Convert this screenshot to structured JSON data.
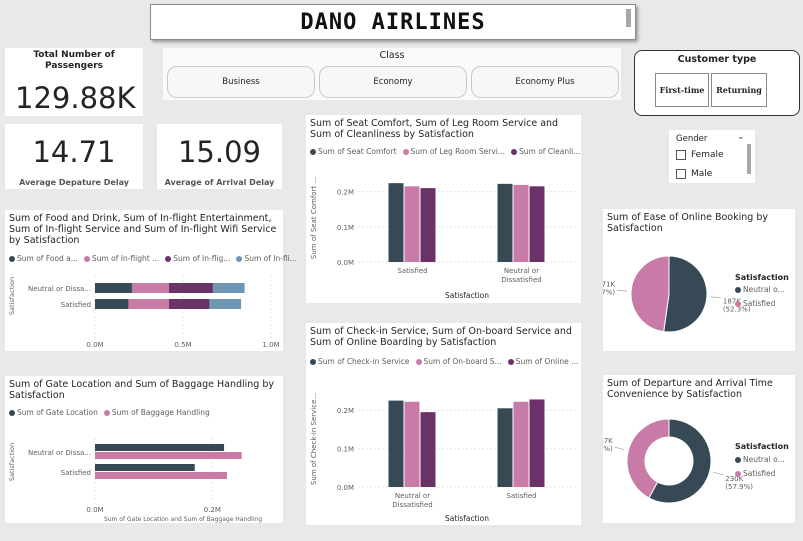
{
  "header": {
    "title": "DANO AIRLINES"
  },
  "kpis": {
    "passengers": {
      "label": "Total Number of Passengers",
      "value": "129.88K"
    },
    "dep_delay": {
      "label": "Average Depature Delay",
      "value": "14.71"
    },
    "arr_delay": {
      "label": "Average of Arrival Delay",
      "value": "15.09"
    }
  },
  "class_slicer": {
    "title": "Class",
    "options": [
      "Business",
      "Economy",
      "Economy Plus"
    ]
  },
  "customer_slicer": {
    "title": "Customer type",
    "options": [
      "First-time",
      "Returning"
    ]
  },
  "gender_slicer": {
    "title": "Gender",
    "options": [
      "Female",
      "Male"
    ]
  },
  "colors": {
    "dark": "#374955",
    "pink": "#c77ba6",
    "purple": "#6b3267",
    "blue": "#6d97b3"
  },
  "chart_data": [
    {
      "id": "food",
      "type": "bar",
      "orientation": "horizontal",
      "stacked": true,
      "title": "Sum of Food and Drink, Sum of In-flight Entertainment, Sum of In-flight Service and Sum of In-flight Wifi Service by Satisfaction",
      "legend": [
        "Sum of Food a...",
        "Sum of In-flight ...",
        "Sum of In-flig...",
        "Sum of In-fli..."
      ],
      "categories": [
        "Neutral or Dissa...",
        "Satisfied"
      ],
      "series": [
        {
          "name": "Sum of Food and Drink",
          "values": [
            0.21,
            0.19
          ]
        },
        {
          "name": "Sum of In-flight Entertainment",
          "values": [
            0.21,
            0.23
          ]
        },
        {
          "name": "Sum of In-flight Service",
          "values": [
            0.25,
            0.23
          ]
        },
        {
          "name": "Sum of In-flight Wifi Service",
          "values": [
            0.18,
            0.18
          ]
        }
      ],
      "xlim": [
        0,
        1.0
      ],
      "xticks": [
        "0.0M",
        "0.5M",
        "1.0M"
      ],
      "xlabel": "Sum of Food and Drink, Sum of In-flight Entertainment, ...",
      "ylabel": "Satisfaction"
    },
    {
      "id": "gate",
      "type": "bar",
      "orientation": "horizontal",
      "title": "Sum of Gate Location and Sum of Baggage Handling by Satisfaction",
      "legend": [
        "Sum of Gate Location",
        "Sum of Baggage Handling"
      ],
      "categories": [
        "Neutral or Dissa...",
        "Satisfied"
      ],
      "series": [
        {
          "name": "Sum of Gate Location",
          "values": [
            0.22,
            0.17
          ]
        },
        {
          "name": "Sum of Baggage Handling",
          "values": [
            0.25,
            0.225
          ]
        }
      ],
      "xlim": [
        0,
        0.3
      ],
      "xticks": [
        "0.0M",
        "0.2M"
      ],
      "xlabel": "Sum of Gate Location and Sum of Baggage Handling",
      "ylabel": "Satisfaction"
    },
    {
      "id": "seat",
      "type": "bar",
      "title": "Sum of Seat Comfort, Sum of Leg Room Service and Sum of Cleanliness by Satisfaction",
      "legend": [
        "Sum of Seat Comfort",
        "Sum of Leg Room Servi...",
        "Sum of Cleanli..."
      ],
      "categories": [
        "Satisfied",
        "Neutral or Dissatisfied"
      ],
      "series": [
        {
          "name": "Sum of Seat Comfort",
          "values": [
            0.224,
            0.222
          ]
        },
        {
          "name": "Sum of Leg Room Service",
          "values": [
            0.215,
            0.219
          ]
        },
        {
          "name": "Sum of Cleanliness",
          "values": [
            0.21,
            0.215
          ]
        }
      ],
      "ylim": [
        0,
        0.25
      ],
      "yticks": [
        "0.0M",
        "0.1M",
        "0.2M"
      ],
      "xlabel": "Satisfaction",
      "ylabel": "Sum of Seat Comfort ..."
    },
    {
      "id": "checkin",
      "type": "bar",
      "title": "Sum of Check-in Service, Sum of On-board Service and Sum of Online Boarding by Satisfaction",
      "legend": [
        "Sum of Check-in Service",
        "Sum of On-board S...",
        "Sum of Online ..."
      ],
      "categories": [
        "Neutral or Dissatisfied",
        "Satisfied"
      ],
      "series": [
        {
          "name": "Sum of Check-in Service",
          "values": [
            0.225,
            0.205
          ]
        },
        {
          "name": "Sum of On-board Service",
          "values": [
            0.222,
            0.222
          ]
        },
        {
          "name": "Sum of Online Boarding",
          "values": [
            0.195,
            0.228
          ]
        }
      ],
      "ylim": [
        0,
        0.25
      ],
      "yticks": [
        "0.0M",
        "0.1M",
        "0.2M"
      ],
      "xlabel": "Satisfaction",
      "ylabel": "Sum of Check-in Service..."
    },
    {
      "id": "ease",
      "type": "pie",
      "title": "Sum of Ease of Online Booking by Satisfaction",
      "legend_title": "Satisfaction",
      "labels": [
        "Neutral o...",
        "Satisfied"
      ],
      "values": [
        187,
        171
      ],
      "data_labels": [
        [
          "187K",
          "(52.3%)"
        ],
        [
          "171K",
          "(47.7%)"
        ]
      ]
    },
    {
      "id": "conv",
      "type": "pie",
      "donut": true,
      "title": "Sum of Departure and Arrival Time Convenience by Satisfaction",
      "legend_title": "Satisfaction",
      "labels": [
        "Neutral o...",
        "Satisfied"
      ],
      "values": [
        230,
        167
      ],
      "data_labels": [
        [
          "230K",
          "(57.9%)"
        ],
        [
          "167K",
          "(42.1%)"
        ]
      ]
    }
  ]
}
